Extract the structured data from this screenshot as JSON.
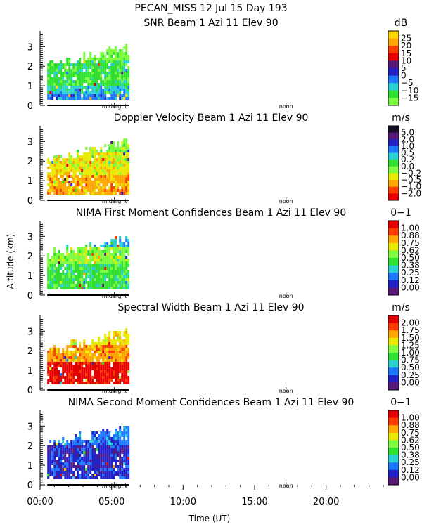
{
  "chart_data": {
    "type": "heatmap",
    "title_line1": "PECAN_MISS  12 Jul 15 Day 193",
    "ylabel": "Altitude (km)",
    "xlabel": "Time (UT)",
    "x_ticks": [
      "00:00",
      "05:00",
      "10:00",
      "15:00",
      "20:00"
    ],
    "x_tick_hours": [
      0,
      5,
      10,
      15,
      20
    ],
    "x_range_hours": [
      0,
      24
    ],
    "y_range_km": [
      0,
      3.8
    ],
    "y_ticks": [
      "0",
      "1",
      "2",
      "3"
    ],
    "y_tick_values": [
      0,
      1,
      2,
      3
    ],
    "markers": [
      {
        "label": "midnight",
        "hour": 5.2
      },
      {
        "label": "noon",
        "hour": 17.2
      }
    ],
    "data_hours": [
      0.5,
      6.2
    ],
    "panels": [
      {
        "title": "SNR Beam 1 Azi  11 Elev 90",
        "units": "dB",
        "colorbar": [
          "25",
          "20",
          "15",
          "10",
          "5",
          "0",
          "−5",
          "−10",
          "−15"
        ],
        "colors": [
          "#ffd700",
          "#ffa500",
          "#ff3c00",
          "#e60000",
          "#5a1a7a",
          "#2222c8",
          "#1e78ff",
          "#28d0d0",
          "#30e030",
          "#7cfc3c"
        ],
        "regions": [
          {
            "from": 0.2,
            "to": 0.45,
            "c": 6
          },
          {
            "from": 0.45,
            "to": 0.9,
            "c": 7
          },
          {
            "from": 0.9,
            "to": 2.2,
            "c": 8
          },
          {
            "from": 2.2,
            "to": 2.9,
            "c": 9
          }
        ]
      },
      {
        "title": "Doppler Velocity Beam 1 Azi  11 Elev 90",
        "units": "m/s",
        "colorbar": [
          "5.0",
          "2.0",
          "1.0",
          "0.5",
          "0.2",
          "0.0",
          "−0.2",
          "−0.5",
          "−1.0",
          "−2.0"
        ],
        "colors": [
          "#1a0f2a",
          "#5a1a7a",
          "#2222c8",
          "#1e78ff",
          "#28d0d0",
          "#30e030",
          "#7cfc3c",
          "#e8e800",
          "#ffa500",
          "#ff3c00",
          "#e60000"
        ],
        "regions": [
          {
            "from": 0.2,
            "to": 1.2,
            "c": 8
          },
          {
            "from": 1.2,
            "to": 2.3,
            "c": 7
          },
          {
            "from": 2.3,
            "to": 3.3,
            "c": 6
          }
        ]
      },
      {
        "title": "NIMA First Moment Confidences Beam 1 Azi  11 Elev 90",
        "units": "0−1",
        "colorbar": [
          "1.00",
          "0.88",
          "0.75",
          "0.62",
          "0.50",
          "0.38",
          "0.25",
          "0.12",
          "0.00"
        ],
        "colors": [
          "#e60000",
          "#ff3c00",
          "#ffa500",
          "#e8e800",
          "#7cfc3c",
          "#30e030",
          "#28d0d0",
          "#1e78ff",
          "#2222c8",
          "#5a1a7a"
        ],
        "regions": [
          {
            "from": 0.2,
            "to": 1.5,
            "c": 5
          },
          {
            "from": 1.5,
            "to": 2.4,
            "c": 4
          },
          {
            "from": 2.4,
            "to": 3.1,
            "c": 6
          }
        ]
      },
      {
        "title": "Spectral Width Beam 1 Azi  11 Elev 90",
        "units": "m/s",
        "colorbar": [
          "2.00",
          "1.75",
          "1.50",
          "1.25",
          "1.00",
          "0.75",
          "0.50",
          "0.25",
          "0.00"
        ],
        "colors": [
          "#e60000",
          "#ff3c00",
          "#ffa500",
          "#e8e800",
          "#7cfc3c",
          "#30e030",
          "#28d0d0",
          "#1e78ff",
          "#2222c8",
          "#5a1a7a"
        ],
        "regions": [
          {
            "from": 0.2,
            "to": 1.3,
            "c": 0
          },
          {
            "from": 1.3,
            "to": 2.2,
            "c": 2
          },
          {
            "from": 2.2,
            "to": 3.3,
            "c": 3
          }
        ]
      },
      {
        "title": "NIMA Second Moment Confidences Beam 1 Azi  11 Elev 90",
        "units": "0−1",
        "colorbar": [
          "1.00",
          "0.88",
          "0.75",
          "0.62",
          "0.50",
          "0.38",
          "0.25",
          "0.12",
          "0.00"
        ],
        "colors": [
          "#e60000",
          "#ff3c00",
          "#ffa500",
          "#e8e800",
          "#7cfc3c",
          "#30e030",
          "#28d0d0",
          "#1e78ff",
          "#2222c8",
          "#5a1a7a"
        ],
        "regions": [
          {
            "from": 0.2,
            "to": 2.0,
            "c": 8
          },
          {
            "from": 2.0,
            "to": 3.3,
            "c": 7
          }
        ]
      }
    ]
  }
}
